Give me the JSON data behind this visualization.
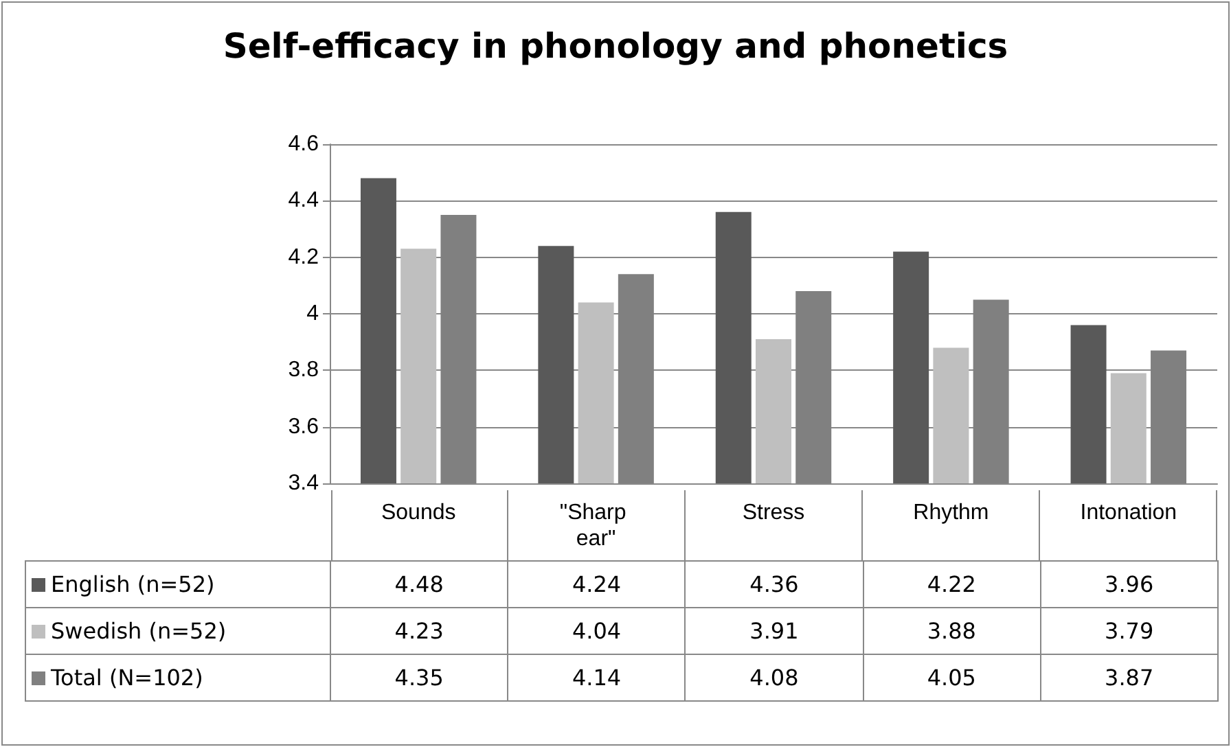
{
  "chart_data": {
    "type": "bar",
    "title": "Self-efficacy in phonology and phonetics",
    "categories": [
      "Sounds",
      "\"Sharp ear\"",
      "Stress",
      "Rhythm",
      "Intonation"
    ],
    "series": [
      {
        "name": "English (n=52)",
        "color": "#595959",
        "values": [
          4.48,
          4.24,
          4.36,
          4.22,
          3.96
        ]
      },
      {
        "name": "Swedish (n=52)",
        "color": "#bfbfbf",
        "values": [
          4.23,
          4.04,
          3.91,
          3.88,
          3.79
        ]
      },
      {
        "name": "Total (N=102)",
        "color": "#808080",
        "values": [
          4.35,
          4.14,
          4.08,
          4.05,
          3.87
        ]
      }
    ],
    "ylim": [
      3.4,
      4.6
    ],
    "yticks": [
      3.4,
      3.6,
      3.8,
      4,
      4.2,
      4.4,
      4.6
    ],
    "grid": "y",
    "legend": "bottom left",
    "data_labels": true
  }
}
